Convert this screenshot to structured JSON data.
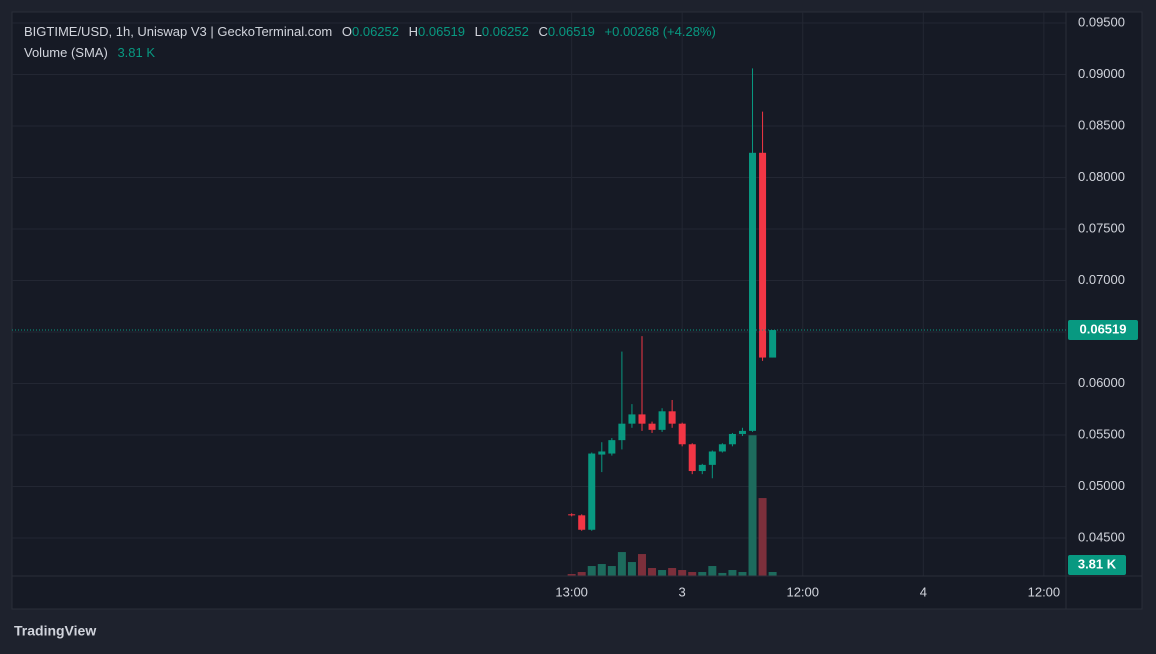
{
  "chart_data": {
    "type": "candlestick",
    "title": "BIGTIME/USD, 1h, Uniswap V3 | GeckoTerminal.com",
    "ohlc_letters": [
      "O",
      "H",
      "L",
      "C"
    ],
    "change_label": "+0.00268 (+4.28%)",
    "volume_name": "Volume (SMA)",
    "volume_last_label": "3.81 K",
    "brand": "TradingView",
    "x": [
      0,
      1,
      2,
      3,
      4,
      5,
      6,
      7,
      8,
      9,
      10,
      11,
      12,
      13,
      14,
      15,
      16,
      17,
      18,
      19,
      20
    ],
    "open": [
      0.0473,
      0.0472,
      0.0458,
      0.0531,
      0.0532,
      0.0545,
      0.0561,
      0.057,
      0.0561,
      0.0555,
      0.0573,
      0.0561,
      0.0541,
      0.0515,
      0.0521,
      0.0534,
      0.0541,
      0.0551,
      0.0554,
      0.0824,
      0.06252
    ],
    "high": [
      0.0474,
      0.0473,
      0.0533,
      0.0543,
      0.0547,
      0.0631,
      0.058,
      0.0646,
      0.0563,
      0.0576,
      0.0584,
      0.0562,
      0.0542,
      0.0522,
      0.0535,
      0.0542,
      0.0552,
      0.0557,
      0.0906,
      0.0864,
      0.06519
    ],
    "low": [
      0.0471,
      0.0457,
      0.0457,
      0.0514,
      0.053,
      0.0536,
      0.0557,
      0.0554,
      0.0552,
      0.0553,
      0.0557,
      0.0539,
      0.0512,
      0.0512,
      0.0508,
      0.0533,
      0.0539,
      0.0549,
      0.0553,
      0.0622,
      0.06252
    ],
    "close": [
      0.0472,
      0.0458,
      0.0532,
      0.0534,
      0.0545,
      0.0561,
      0.057,
      0.0561,
      0.0555,
      0.0573,
      0.0561,
      0.0541,
      0.0515,
      0.0521,
      0.0534,
      0.0541,
      0.0551,
      0.0554,
      0.0824,
      0.06252,
      0.06519
    ],
    "volume": [
      1900,
      3800,
      9500,
      11400,
      9500,
      22800,
      13300,
      20900,
      7600,
      5700,
      7600,
      5700,
      3800,
      3800,
      9500,
      2900,
      5700,
      3800,
      134000,
      74200,
      3810
    ],
    "up_color": "#089981",
    "down_color": "#f23645",
    "volume_up_color": "#1d6b5d",
    "volume_down_color": "#7c2f3b",
    "xlim": [
      -55.7,
      49.2
    ],
    "ylim": [
      0.04131,
      0.09607
    ],
    "volume_lim": [
      0,
      537000
    ],
    "yticks": [
      {
        "value": 0.045,
        "label": "0.04500"
      },
      {
        "value": 0.05,
        "label": "0.05000"
      },
      {
        "value": 0.055,
        "label": "0.05500"
      },
      {
        "value": 0.06,
        "label": "0.06000"
      },
      {
        "value": 0.065,
        "label": "0.06500"
      },
      {
        "value": 0.07,
        "label": "0.07000"
      },
      {
        "value": 0.075,
        "label": "0.07500"
      },
      {
        "value": 0.08,
        "label": "0.08000"
      },
      {
        "value": 0.085,
        "label": "0.08500"
      },
      {
        "value": 0.09,
        "label": "0.09000"
      },
      {
        "value": 0.095,
        "label": "0.09500"
      }
    ],
    "xticks": [
      {
        "value": 0,
        "label": "13:00"
      },
      {
        "value": 11,
        "label": "3"
      },
      {
        "value": 23,
        "label": "12:00"
      },
      {
        "value": 35,
        "label": "4"
      },
      {
        "value": 47,
        "label": "12:00"
      }
    ],
    "grid": true
  }
}
